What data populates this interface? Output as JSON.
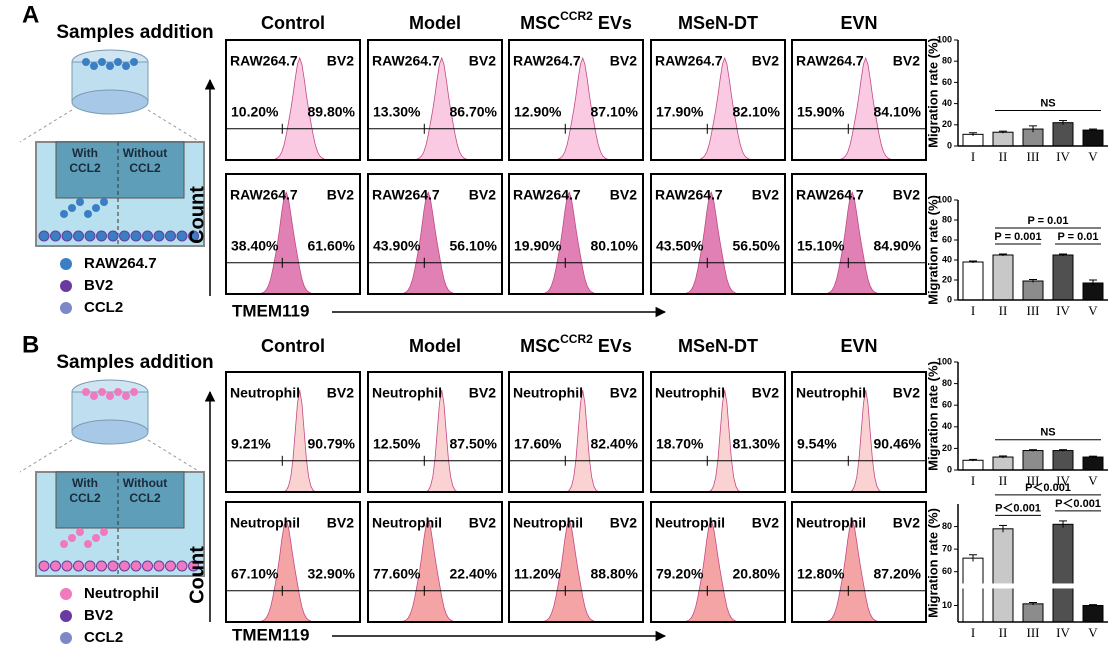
{
  "panels": [
    {
      "label": "A",
      "title": "Samples addition",
      "chamber_labels": [
        [
          "With",
          "CCL2"
        ],
        [
          "Without",
          "CCL2"
        ]
      ],
      "legend": [
        "RAW264.7",
        "BV2",
        "CCL2"
      ],
      "legend_colors": [
        "#3a7fc4",
        "#6a3aa0",
        "#7d88c8"
      ],
      "columns": [
        "Control",
        "Model",
        {
          "base": "MSC",
          "sup": "CCR2",
          "suffix": " EVs"
        },
        "MSeN-DT",
        "EVN"
      ],
      "y_label": "Count",
      "x_label": "TMEM119",
      "rows": [
        {
          "color": "#f9c8e0",
          "plots": [
            {
              "cell": "RAW264.7",
              "other": "BV2",
              "left": "10.20%",
              "right": "89.80%"
            },
            {
              "cell": "RAW264.7",
              "other": "BV2",
              "left": "13.30%",
              "right": "86.70%"
            },
            {
              "cell": "RAW264.7",
              "other": "BV2",
              "left": "12.90%",
              "right": "87.10%"
            },
            {
              "cell": "RAW264.7",
              "other": "BV2",
              "left": "17.90%",
              "right": "82.10%"
            },
            {
              "cell": "RAW264.7",
              "other": "BV2",
              "left": "15.90%",
              "right": "84.10%"
            }
          ]
        },
        {
          "color": "#e07ab0",
          "plots": [
            {
              "cell": "RAW264.7",
              "other": "BV2",
              "left": "38.40%",
              "right": "61.60%"
            },
            {
              "cell": "RAW264.7",
              "other": "BV2",
              "left": "43.90%",
              "right": "56.10%"
            },
            {
              "cell": "RAW264.7",
              "other": "BV2",
              "left": "19.90%",
              "right": "80.10%"
            },
            {
              "cell": "RAW264.7",
              "other": "BV2",
              "left": "43.50%",
              "right": "56.50%"
            },
            {
              "cell": "RAW264.7",
              "other": "BV2",
              "left": "15.10%",
              "right": "84.90%"
            }
          ]
        }
      ]
    },
    {
      "label": "B",
      "title": "Samples addition",
      "chamber_labels": [
        [
          "With",
          "CCL2"
        ],
        [
          "Without",
          "CCL2"
        ]
      ],
      "legend": [
        "Neutrophil",
        "BV2",
        "CCL2"
      ],
      "legend_colors": [
        "#f07ac0",
        "#6a3aa0",
        "#7d88c8"
      ],
      "columns": [
        "Control",
        "Model",
        {
          "base": "MSC",
          "sup": "CCR2",
          "suffix": " EVs"
        },
        "MSeN-DT",
        "EVN"
      ],
      "y_label": "Count",
      "x_label": "TMEM119",
      "rows": [
        {
          "color": "#fbd0d0",
          "plots": [
            {
              "cell": "Neutrophil",
              "other": "BV2",
              "left": "9.21%",
              "right": "90.79%"
            },
            {
              "cell": "Neutrophil",
              "other": "BV2",
              "left": "12.50%",
              "right": "87.50%"
            },
            {
              "cell": "Neutrophil",
              "other": "BV2",
              "left": "17.60%",
              "right": "82.40%"
            },
            {
              "cell": "Neutrophil",
              "other": "BV2",
              "left": "18.70%",
              "right": "81.30%"
            },
            {
              "cell": "Neutrophil",
              "other": "BV2",
              "left": "9.54%",
              "right": "90.46%"
            }
          ]
        },
        {
          "color": "#f4a0a0",
          "plots": [
            {
              "cell": "Neutrophil",
              "other": "BV2",
              "left": "67.10%",
              "right": "32.90%"
            },
            {
              "cell": "Neutrophil",
              "other": "BV2",
              "left": "77.60%",
              "right": "22.40%"
            },
            {
              "cell": "Neutrophil",
              "other": "BV2",
              "left": "11.20%",
              "right": "88.80%"
            },
            {
              "cell": "Neutrophil",
              "other": "BV2",
              "left": "79.20%",
              "right": "20.80%"
            },
            {
              "cell": "Neutrophil",
              "other": "BV2",
              "left": "12.80%",
              "right": "87.20%"
            }
          ]
        }
      ]
    }
  ],
  "chart_data": [
    {
      "type": "bar",
      "ylabel": "Migration rate (%)",
      "categories": [
        "I",
        "II",
        "III",
        "IV",
        "V"
      ],
      "values": [
        11,
        13,
        16,
        22,
        15
      ],
      "errors": [
        1.5,
        1,
        3,
        2,
        1
      ],
      "colors": [
        "#ffffff",
        "#c8c8c8",
        "#8c8c8c",
        "#505050",
        "#111111"
      ],
      "ylim": [
        0,
        100
      ],
      "yticks": [
        0,
        20,
        40,
        60,
        80,
        100
      ],
      "annotations": [
        {
          "text": "NS",
          "between": [
            "II",
            "V"
          ]
        }
      ]
    },
    {
      "type": "bar",
      "ylabel": "Migration rate (%)",
      "categories": [
        "I",
        "II",
        "III",
        "IV",
        "V"
      ],
      "values": [
        38,
        45,
        19,
        45,
        17
      ],
      "errors": [
        1,
        1,
        1.5,
        1,
        3
      ],
      "colors": [
        "#ffffff",
        "#c8c8c8",
        "#8c8c8c",
        "#505050",
        "#111111"
      ],
      "ylim": [
        0,
        100
      ],
      "yticks": [
        0,
        20,
        40,
        60,
        80,
        100
      ],
      "annotations": [
        {
          "text": "P = 0.001",
          "between": [
            "II",
            "III"
          ]
        },
        {
          "text": "P = 0.01",
          "between": [
            "IV",
            "V"
          ]
        },
        {
          "text": "P = 0.01",
          "between": [
            "II",
            "V"
          ]
        }
      ]
    },
    {
      "type": "bar",
      "ylabel": "Migration rate (%)",
      "categories": [
        "I",
        "II",
        "III",
        "IV",
        "V"
      ],
      "values": [
        9,
        12,
        18,
        18,
        12
      ],
      "errors": [
        0.8,
        1,
        0.8,
        0.8,
        0.8
      ],
      "colors": [
        "#ffffff",
        "#c8c8c8",
        "#8c8c8c",
        "#505050",
        "#111111"
      ],
      "ylim": [
        0,
        100
      ],
      "yticks": [
        0,
        20,
        40,
        60,
        80,
        100
      ],
      "annotations": [
        {
          "text": "NS",
          "between": [
            "II",
            "V"
          ]
        }
      ]
    },
    {
      "type": "bar",
      "ylabel": "Migration rate (%)",
      "categories": [
        "I",
        "II",
        "III",
        "IV",
        "V"
      ],
      "values": [
        66,
        79,
        11,
        81,
        10
      ],
      "errors": [
        1.5,
        1.5,
        0.8,
        1.5,
        0.5
      ],
      "colors": [
        "#ffffff",
        "#c8c8c8",
        "#8c8c8c",
        "#505050",
        "#111111"
      ],
      "ylim": [
        0,
        90
      ],
      "ybreak": [
        20,
        55
      ],
      "yticks": [
        10,
        60,
        70,
        80
      ],
      "annotations": [
        {
          "text": "P＜0.001",
          "between": [
            "II",
            "III"
          ]
        },
        {
          "text": "P＜0.001",
          "between": [
            "IV",
            "V"
          ]
        },
        {
          "text": "P＜0.001",
          "between": [
            "II",
            "V"
          ]
        }
      ]
    }
  ]
}
